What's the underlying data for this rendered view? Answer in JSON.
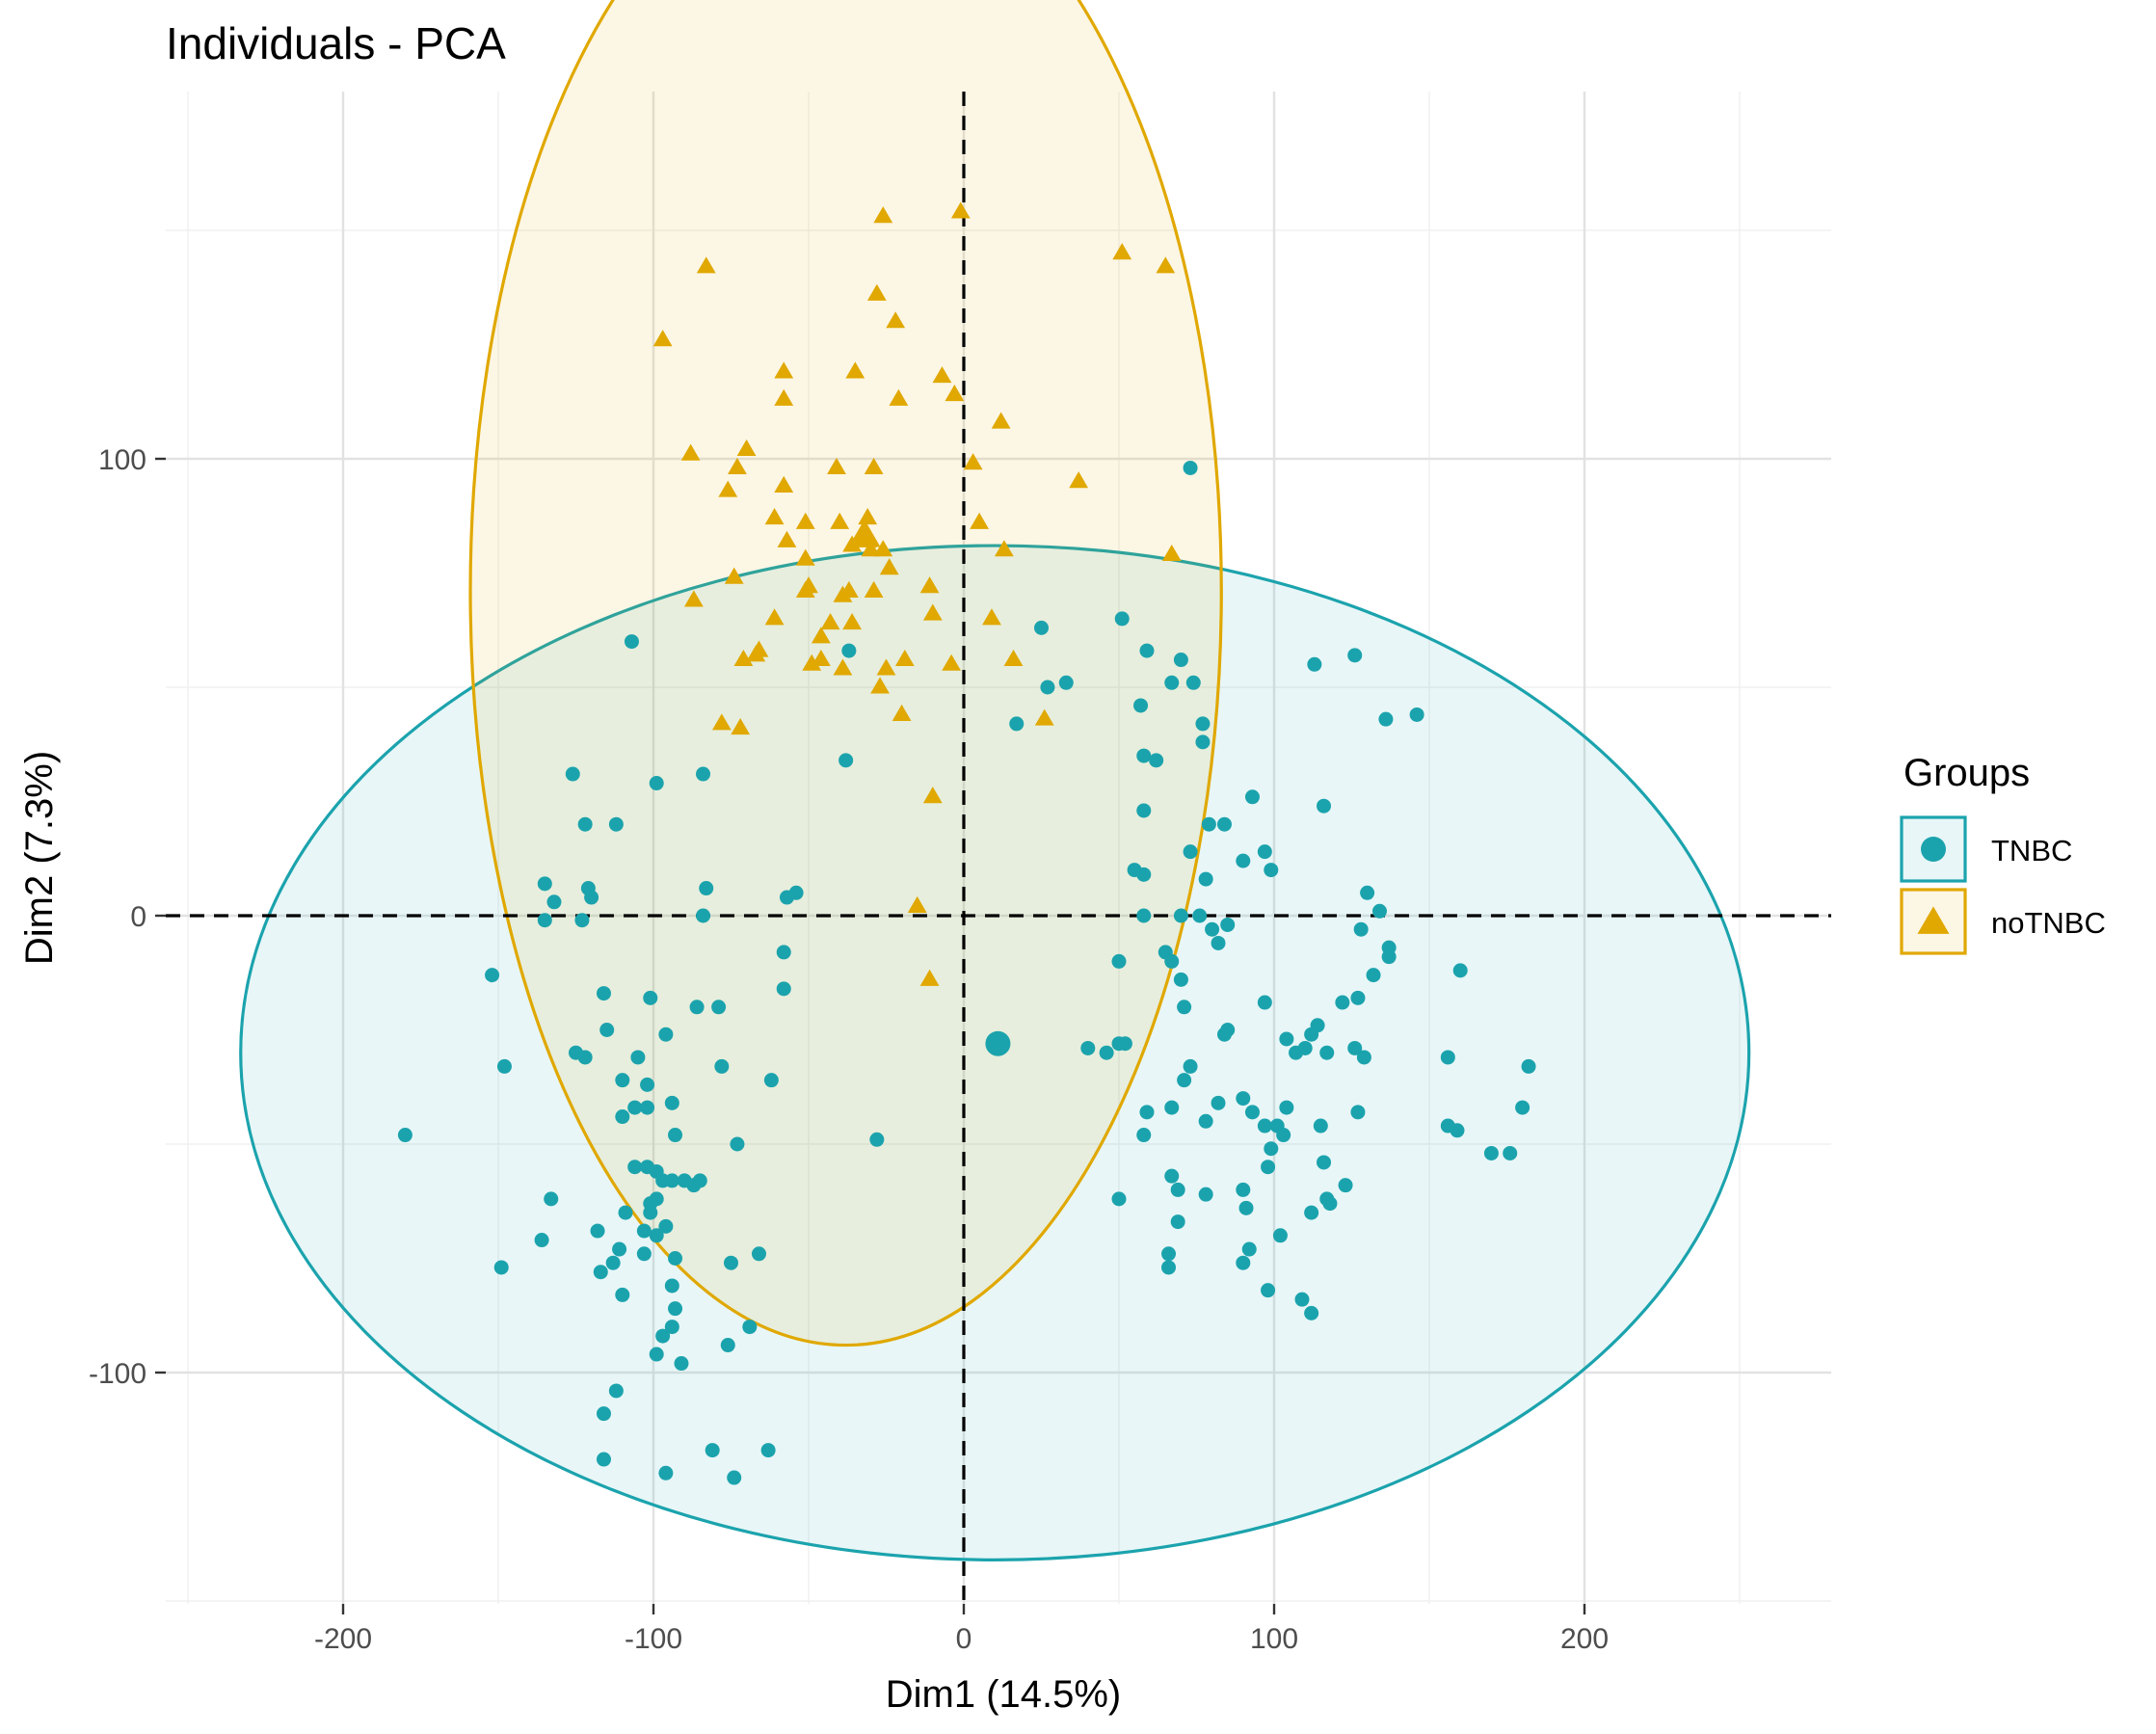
{
  "chart_data": {
    "type": "scatter",
    "title": "Individuals - PCA",
    "xlabel": "Dim1 (14.5%)",
    "ylabel": "Dim2 (7.3%)",
    "xlim": [
      -255,
      278
    ],
    "ylim": [
      -150,
      180
    ],
    "xticks": [
      -200,
      -100,
      0,
      100,
      200
    ],
    "yticks": [
      -100,
      0,
      100
    ],
    "grid": true,
    "reference_lines": {
      "x": 0,
      "y": 0,
      "style": "dashed"
    },
    "legend": {
      "title": "Groups",
      "placement": "right",
      "entries": [
        {
          "label": "TNBC",
          "shape": "circle"
        },
        {
          "label": "noTNBC",
          "shape": "triangle"
        }
      ]
    },
    "colors": {
      "TNBC": "#1ba3ad",
      "noTNBC": "#e0a800"
    },
    "series": [
      {
        "name": "TNBC",
        "shape": "circle",
        "centroid": [
          11,
          -28
        ],
        "ellipse": {
          "center": [
            10,
            -30
          ],
          "semi_x": 243,
          "semi_y": 111
        },
        "points": [
          [
            73,
            98
          ],
          [
            51,
            65
          ],
          [
            59,
            58
          ],
          [
            70,
            56
          ],
          [
            74,
            51
          ],
          [
            67,
            51
          ],
          [
            25,
            63
          ],
          [
            27,
            50
          ],
          [
            33,
            51
          ],
          [
            113,
            55
          ],
          [
            126,
            57
          ],
          [
            146,
            44
          ],
          [
            136,
            43
          ],
          [
            57,
            46
          ],
          [
            77,
            42
          ],
          [
            17,
            42
          ],
          [
            58,
            35
          ],
          [
            62,
            34
          ],
          [
            77,
            38
          ],
          [
            -107,
            60
          ],
          [
            -37,
            58
          ],
          [
            -38,
            34
          ],
          [
            -99,
            29
          ],
          [
            -84,
            31
          ],
          [
            -126,
            31
          ],
          [
            -122,
            20
          ],
          [
            -112,
            20
          ],
          [
            -83,
            6
          ],
          [
            -57,
            4
          ],
          [
            -54,
            5
          ],
          [
            -135,
            7
          ],
          [
            -121,
            6
          ],
          [
            -132,
            3
          ],
          [
            -120,
            4
          ],
          [
            -123,
            -1
          ],
          [
            -135,
            -1
          ],
          [
            -84,
            0
          ],
          [
            58,
            23
          ],
          [
            93,
            26
          ],
          [
            116,
            24
          ],
          [
            84,
            20
          ],
          [
            79,
            20
          ],
          [
            73,
            14
          ],
          [
            90,
            12
          ],
          [
            97,
            14
          ],
          [
            99,
            10
          ],
          [
            55,
            10
          ],
          [
            58,
            9
          ],
          [
            78,
            8
          ],
          [
            76,
            0
          ],
          [
            70,
            0
          ],
          [
            80,
            -3
          ],
          [
            85,
            -2
          ],
          [
            82,
            -6
          ],
          [
            58,
            0
          ],
          [
            65,
            -8
          ],
          [
            67,
            -10
          ],
          [
            50,
            -10
          ],
          [
            70,
            -14
          ],
          [
            71,
            -20
          ],
          [
            130,
            5
          ],
          [
            128,
            -3
          ],
          [
            134,
            1
          ],
          [
            137,
            -7
          ],
          [
            137,
            -9
          ],
          [
            160,
            -12
          ],
          [
            132,
            -13
          ],
          [
            127,
            -18
          ],
          [
            122,
            -19
          ],
          [
            97,
            -19
          ],
          [
            114,
            -24
          ],
          [
            104,
            -27
          ],
          [
            112,
            -26
          ],
          [
            110,
            -29
          ],
          [
            126,
            -29
          ],
          [
            107,
            -30
          ],
          [
            117,
            -30
          ],
          [
            129,
            -31
          ],
          [
            52,
            -28
          ],
          [
            50,
            -28
          ],
          [
            40,
            -29
          ],
          [
            46,
            -30
          ],
          [
            84,
            -26
          ],
          [
            85,
            -25
          ],
          [
            73,
            -33
          ],
          [
            71,
            -36
          ],
          [
            67,
            -42
          ],
          [
            59,
            -43
          ],
          [
            58,
            -48
          ],
          [
            82,
            -41
          ],
          [
            78,
            -45
          ],
          [
            90,
            -40
          ],
          [
            93,
            -43
          ],
          [
            104,
            -42
          ],
          [
            101,
            -46
          ],
          [
            103,
            -48
          ],
          [
            97,
            -46
          ],
          [
            99,
            -51
          ],
          [
            115,
            -46
          ],
          [
            127,
            -43
          ],
          [
            156,
            -31
          ],
          [
            182,
            -33
          ],
          [
            180,
            -42
          ],
          [
            156,
            -46
          ],
          [
            159,
            -47
          ],
          [
            170,
            -52
          ],
          [
            176,
            -52
          ],
          [
            116,
            -54
          ],
          [
            98,
            -55
          ],
          [
            67,
            -57
          ],
          [
            69,
            -60
          ],
          [
            50,
            -62
          ],
          [
            78,
            -61
          ],
          [
            90,
            -60
          ],
          [
            123,
            -59
          ],
          [
            117,
            -62
          ],
          [
            118,
            -63
          ],
          [
            112,
            -65
          ],
          [
            91,
            -64
          ],
          [
            69,
            -67
          ],
          [
            92,
            -73
          ],
          [
            102,
            -70
          ],
          [
            66,
            -74
          ],
          [
            66,
            -77
          ],
          [
            90,
            -76
          ],
          [
            98,
            -82
          ],
          [
            109,
            -84
          ],
          [
            112,
            -87
          ],
          [
            -152,
            -13
          ],
          [
            -148,
            -33
          ],
          [
            -116,
            -17
          ],
          [
            -115,
            -25
          ],
          [
            -125,
            -30
          ],
          [
            -122,
            -31
          ],
          [
            -101,
            -18
          ],
          [
            -96,
            -26
          ],
          [
            -86,
            -20
          ],
          [
            -79,
            -20
          ],
          [
            -78,
            -33
          ],
          [
            -94,
            -41
          ],
          [
            -62,
            -36
          ],
          [
            -58,
            -16
          ],
          [
            -58,
            -8
          ],
          [
            -102,
            -37
          ],
          [
            -102,
            -42
          ],
          [
            -106,
            -42
          ],
          [
            -110,
            -44
          ],
          [
            -110,
            -36
          ],
          [
            -105,
            -31
          ],
          [
            -93,
            -48
          ],
          [
            -73,
            -50
          ],
          [
            -28,
            -49
          ],
          [
            -180,
            -48
          ],
          [
            -102,
            -55
          ],
          [
            -106,
            -55
          ],
          [
            -97,
            -58
          ],
          [
            -99,
            -56
          ],
          [
            -90,
            -58
          ],
          [
            -94,
            -58
          ],
          [
            -85,
            -58
          ],
          [
            -87,
            -59
          ],
          [
            -99,
            -62
          ],
          [
            -101,
            -65
          ],
          [
            -101,
            -63
          ],
          [
            -96,
            -68
          ],
          [
            -99,
            -70
          ],
          [
            -109,
            -65
          ],
          [
            -111,
            -73
          ],
          [
            -118,
            -69
          ],
          [
            -133,
            -62
          ],
          [
            -136,
            -71
          ],
          [
            -93,
            -75
          ],
          [
            -103,
            -69
          ],
          [
            -103,
            -74
          ],
          [
            -113,
            -76
          ],
          [
            -117,
            -78
          ],
          [
            -110,
            -83
          ],
          [
            -94,
            -81
          ],
          [
            -93,
            -86
          ],
          [
            -94,
            -90
          ],
          [
            -97,
            -92
          ],
          [
            -99,
            -96
          ],
          [
            -75,
            -76
          ],
          [
            -66,
            -74
          ],
          [
            -69,
            -90
          ],
          [
            -76,
            -94
          ],
          [
            -91,
            -98
          ],
          [
            -149,
            -77
          ],
          [
            -112,
            -104
          ],
          [
            -116,
            -109
          ],
          [
            -116,
            -119
          ],
          [
            -96,
            -122
          ],
          [
            -81,
            -117
          ],
          [
            -74,
            -123
          ],
          [
            -63,
            -117
          ]
        ]
      },
      {
        "name": "noTNBC",
        "shape": "triangle",
        "centroid": [
          -32,
          83
        ],
        "ellipse": {
          "center": [
            -38,
            71
          ],
          "semi_x": 121,
          "semi_y": 165
        },
        "points": [
          [
            -26,
            153
          ],
          [
            -1,
            154
          ],
          [
            51,
            145
          ],
          [
            65,
            142
          ],
          [
            -83,
            142
          ],
          [
            -28,
            136
          ],
          [
            -22,
            130
          ],
          [
            -97,
            126
          ],
          [
            -58,
            119
          ],
          [
            -35,
            119
          ],
          [
            -7,
            118
          ],
          [
            -58,
            113
          ],
          [
            -21,
            113
          ],
          [
            -3,
            114
          ],
          [
            12,
            108
          ],
          [
            -88,
            101
          ],
          [
            -70,
            102
          ],
          [
            -73,
            98
          ],
          [
            -41,
            98
          ],
          [
            -29,
            98
          ],
          [
            3,
            99
          ],
          [
            37,
            95
          ],
          [
            -58,
            94
          ],
          [
            -76,
            93
          ],
          [
            -40,
            86
          ],
          [
            -61,
            87
          ],
          [
            -51,
            86
          ],
          [
            -31,
            87
          ],
          [
            5,
            86
          ],
          [
            -31,
            82
          ],
          [
            -57,
            82
          ],
          [
            -36,
            81
          ],
          [
            -30,
            80
          ],
          [
            -26,
            80
          ],
          [
            13,
            80
          ],
          [
            67,
            79
          ],
          [
            -51,
            78
          ],
          [
            -24,
            76
          ],
          [
            -74,
            74
          ],
          [
            -50,
            72
          ],
          [
            -51,
            71
          ],
          [
            -39,
            70
          ],
          [
            -29,
            71
          ],
          [
            -37,
            71
          ],
          [
            -11,
            72
          ],
          [
            -87,
            69
          ],
          [
            -61,
            65
          ],
          [
            -43,
            64
          ],
          [
            -10,
            66
          ],
          [
            -36,
            64
          ],
          [
            9,
            65
          ],
          [
            -46,
            61
          ],
          [
            -66,
            58
          ],
          [
            -67,
            57
          ],
          [
            -71,
            56
          ],
          [
            -46,
            56
          ],
          [
            -49,
            55
          ],
          [
            -19,
            56
          ],
          [
            -4,
            55
          ],
          [
            -25,
            54
          ],
          [
            16,
            56
          ],
          [
            -39,
            54
          ],
          [
            -27,
            50
          ],
          [
            -20,
            44
          ],
          [
            26,
            43
          ],
          [
            -78,
            42
          ],
          [
            -72,
            41
          ],
          [
            -10,
            26
          ],
          [
            -15,
            2
          ],
          [
            -11,
            -14
          ]
        ]
      }
    ]
  }
}
